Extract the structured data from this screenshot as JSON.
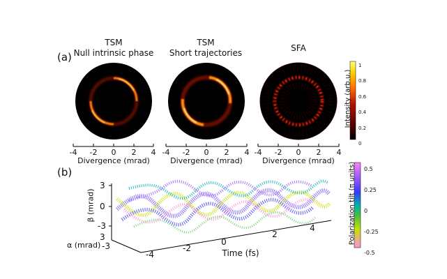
{
  "panel_a": {
    "label": "(a)",
    "plots": [
      {
        "title_line1": "TSM",
        "title_line2": "Null intrinsic phase",
        "xlabel": "Divergence (mrad)"
      },
      {
        "title_line1": "TSM",
        "title_line2": "Short trajectories",
        "xlabel": "Divergence (mrad)"
      },
      {
        "title_line1": "SFA",
        "title_line2": "",
        "xlabel": "Divergence (mrad)"
      }
    ],
    "xticks": [
      "-4",
      "-2",
      "0",
      "2",
      "4"
    ],
    "colorbar": {
      "label": "Intensity (arb.u.)",
      "ticks": [
        "1",
        "0.8",
        "0.6",
        "0.4",
        "0.2",
        "0"
      ],
      "colors": [
        "#000000",
        "#5a0000",
        "#b01200",
        "#ff6a00",
        "#ffd000",
        "#ffff80"
      ]
    }
  },
  "panel_b": {
    "label": "(b)",
    "beta_label": "β (mrad)",
    "beta_ticks": [
      "3",
      "0",
      "-3"
    ],
    "alpha_label": "α (mrad)",
    "alpha_ticks": [
      "3",
      "-3"
    ],
    "time_label": "Time (fs)",
    "time_ticks": [
      "-4",
      "-2",
      "0",
      "2",
      "4"
    ],
    "colorbar": {
      "label": "Polarization tilt (π units)",
      "ticks": [
        "0.5",
        "0.25",
        "0",
        "-0.25",
        "-0.5"
      ],
      "colors": [
        "#ff80ff",
        "#9b59ff",
        "#3a3aff",
        "#00b0b0",
        "#40c040",
        "#c8e000",
        "#ff90e0"
      ]
    }
  }
}
